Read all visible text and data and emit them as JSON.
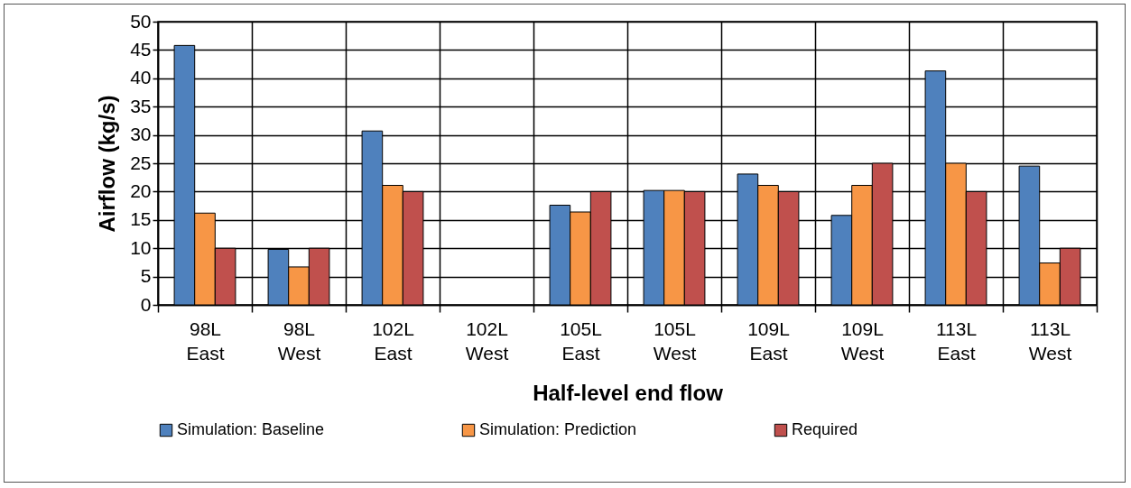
{
  "chart_data": {
    "type": "bar",
    "xlabel": "Half-level end flow",
    "ylabel": "Airflow (kg/s)",
    "categories": [
      "98L East",
      "98L West",
      "102L East",
      "102L West",
      "105L East",
      "105L West",
      "109L East",
      "109L West",
      "113L East",
      "113L West"
    ],
    "series": [
      {
        "name": "Simulation: Baseline",
        "color": "#4f81bd",
        "values": [
          45.8,
          9.8,
          30.7,
          0,
          17.6,
          20.2,
          23.1,
          15.8,
          41.3,
          24.5
        ]
      },
      {
        "name": "Simulation: Prediction",
        "color": "#f79646",
        "values": [
          16.2,
          6.7,
          21.1,
          0,
          16.4,
          20.2,
          21.1,
          21.1,
          25,
          7.4
        ]
      },
      {
        "name": "Required",
        "color": "#c0504d",
        "values": [
          10,
          10,
          20,
          0,
          20,
          20,
          20,
          25,
          20,
          10
        ]
      }
    ],
    "ylim": [
      0,
      50
    ],
    "yticks": [
      0,
      5,
      10,
      15,
      20,
      25,
      30,
      35,
      40,
      45,
      50
    ],
    "grid": true,
    "legend": "bottom"
  }
}
